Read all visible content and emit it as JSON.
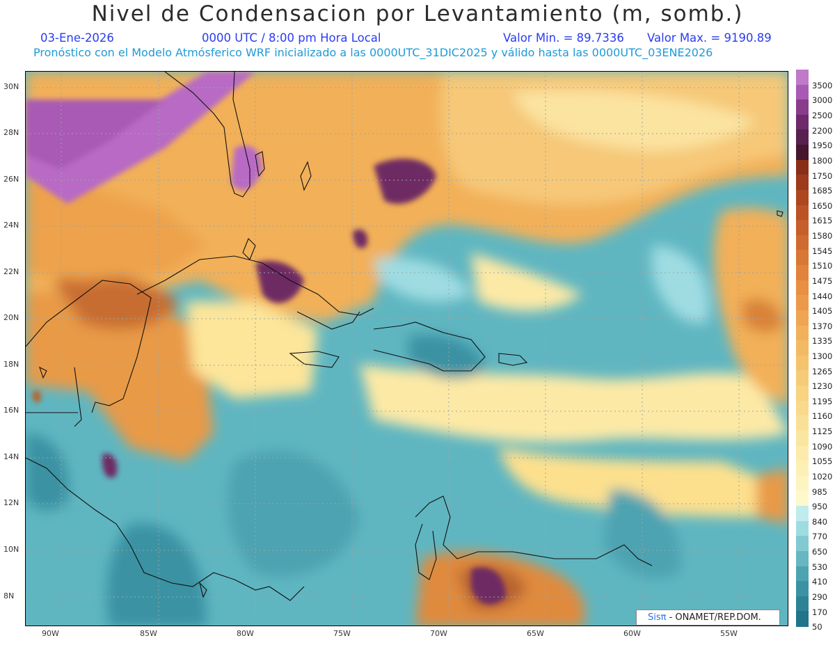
{
  "header": {
    "title": "Nivel de Condensacion por Levantamiento (m, somb.)",
    "date": "03-Ene-2026",
    "time": "0000 UTC / 8:00 pm Hora Local",
    "min_label": "Valor Min. = 89.7336",
    "max_label": "Valor Max. = 9190.89",
    "model_line": "Pronóstico con el Modelo Atmósferico WRF inicializado a las 0000UTC_31DIC2025 y válido hasta las  0000UTC_03ENE2026"
  },
  "map": {
    "lon_ticks": [
      "90W",
      "85W",
      "80W",
      "75W",
      "70W",
      "65W",
      "60W",
      "55W"
    ],
    "lat_ticks": [
      "30N",
      "28N",
      "26N",
      "24N",
      "22N",
      "20N",
      "18N",
      "16N",
      "14N",
      "12N",
      "10N",
      "8N"
    ],
    "lon_range": [
      -92,
      -52.5
    ],
    "lat_range": [
      6.7,
      30.7
    ],
    "colors": {
      "teal_dark": "#2f8fa0",
      "teal": "#5fb6c1",
      "teal_light": "#9fdce2",
      "cream": "#fef3a8",
      "orange_light": "#f5c36a",
      "orange": "#e8973c",
      "brown": "#b5622a",
      "purple_dark": "#6e2a63",
      "lilac": "#b86ac4"
    }
  },
  "legend": {
    "labels": [
      "3500",
      "3000",
      "2500",
      "2200",
      "1950",
      "1800",
      "1750",
      "1685",
      "1650",
      "1615",
      "1580",
      "1545",
      "1510",
      "1475",
      "1440",
      "1405",
      "1370",
      "1335",
      "1300",
      "1265",
      "1230",
      "1195",
      "1160",
      "1125",
      "1090",
      "1055",
      "1020",
      "985",
      "950",
      "840",
      "770",
      "650",
      "530",
      "410",
      "290",
      "170",
      "50"
    ],
    "colors": [
      "#c07ac8",
      "#a85ab4",
      "#8a3c8c",
      "#6e2a6a",
      "#58204f",
      "#45162d",
      "#8a2f17",
      "#9e3a1c",
      "#ae4620",
      "#bc5325",
      "#c65f2a",
      "#d06b2f",
      "#d97735",
      "#e1833b",
      "#e88f42",
      "#ec9a49",
      "#efa551",
      "#f2b05a",
      "#f4ba63",
      "#f5c36d",
      "#f6cb77",
      "#f8d381",
      "#f9da8b",
      "#fae096",
      "#fbe6a1",
      "#fcebac",
      "#fdf0b6",
      "#fef4c0",
      "#fef8cc",
      "#c0ecee",
      "#9fdce2",
      "#82c9d1",
      "#67b6c1",
      "#4ea3b1",
      "#3b92a3",
      "#2d8396",
      "#21748a"
    ]
  },
  "credit": {
    "sis": "Sisπ",
    "rest": " - ONAMET/REP.DOM."
  }
}
